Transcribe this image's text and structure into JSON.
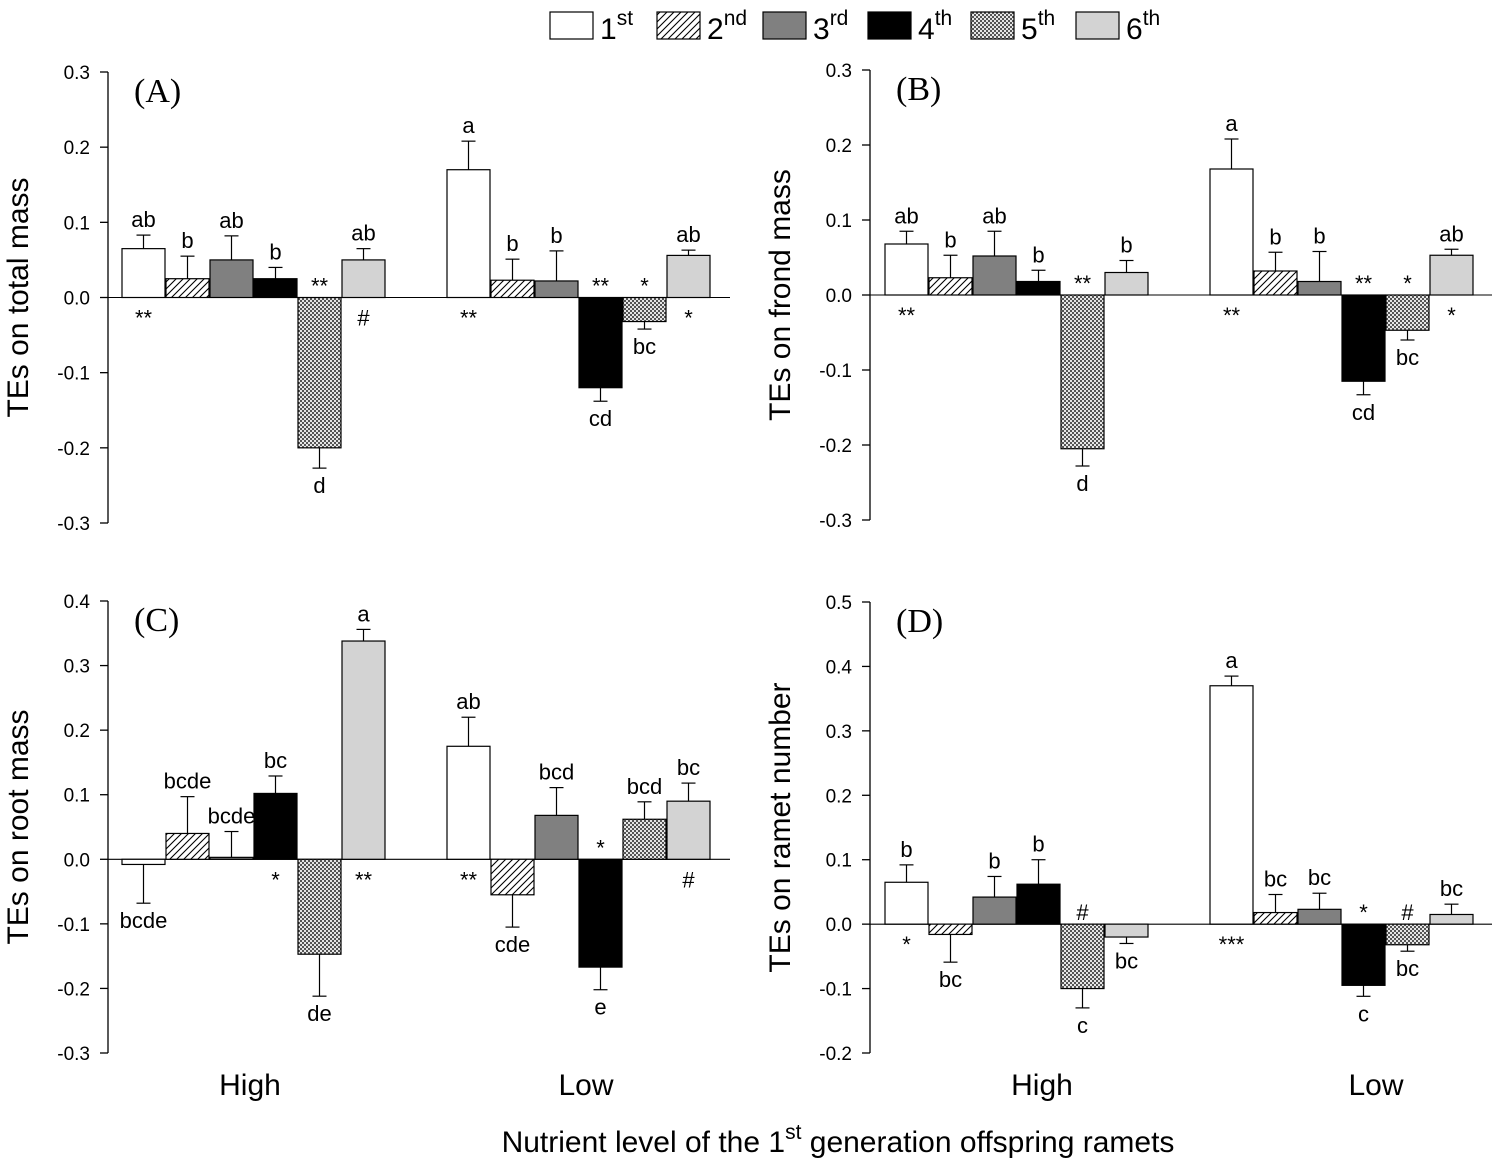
{
  "legend": [
    {
      "base": "1",
      "sup": "st",
      "fill": "white"
    },
    {
      "base": "2",
      "sup": "nd",
      "fill": "hatch"
    },
    {
      "base": "3",
      "sup": "rd",
      "fill": "#808080"
    },
    {
      "base": "4",
      "sup": "th",
      "fill": "#000000"
    },
    {
      "base": "5",
      "sup": "th",
      "fill": "checker"
    },
    {
      "base": "6",
      "sup": "th",
      "fill": "#d3d3d3"
    }
  ],
  "x_title": {
    "before": "Nutrient level of the 1",
    "sup": "st",
    "after": " generation offspring ramets"
  },
  "chart_data": [
    {
      "type": "bar",
      "panel": "(A)",
      "ylabel": "TEs on total mass",
      "ylim": [
        -0.3,
        0.3
      ],
      "yticks": [
        "0.3",
        "0.2",
        "0.1",
        "0.0",
        "-0.1",
        "-0.2",
        "-0.3"
      ],
      "categories": [
        "High",
        "Low"
      ],
      "series": [
        {
          "name": "1st",
          "values": [
            0.065,
            0.17
          ],
          "errors": [
            0.018,
            0.038
          ],
          "letters": [
            "ab",
            "a"
          ],
          "sig": [
            "**",
            "**"
          ]
        },
        {
          "name": "2nd",
          "values": [
            0.025,
            0.023
          ],
          "errors": [
            0.03,
            0.028
          ],
          "letters": [
            "b",
            "b"
          ],
          "sig": [
            "",
            ""
          ]
        },
        {
          "name": "3rd",
          "values": [
            0.05,
            0.022
          ],
          "errors": [
            0.032,
            0.04
          ],
          "letters": [
            "ab",
            "b"
          ],
          "sig": [
            "",
            ""
          ]
        },
        {
          "name": "4th",
          "values": [
            0.025,
            -0.12
          ],
          "errors": [
            0.015,
            0.018
          ],
          "letters": [
            "b",
            "cd"
          ],
          "sig": [
            "",
            "**"
          ]
        },
        {
          "name": "5th",
          "values": [
            -0.2,
            -0.032
          ],
          "errors": [
            0.027,
            0.01
          ],
          "letters": [
            "d",
            "bc"
          ],
          "sig": [
            "**",
            "*"
          ]
        },
        {
          "name": "6th",
          "values": [
            0.05,
            0.056
          ],
          "errors": [
            0.015,
            0.007
          ],
          "letters": [
            "ab",
            "ab"
          ],
          "sig": [
            "#",
            "*"
          ]
        }
      ]
    },
    {
      "type": "bar",
      "panel": "(B)",
      "ylabel": "TEs on frond mass",
      "ylim": [
        -0.3,
        0.3
      ],
      "yticks": [
        "0.3",
        "0.2",
        "0.1",
        "0.0",
        "-0.1",
        "-0.2",
        "-0.3"
      ],
      "categories": [
        "High",
        "Low"
      ],
      "series": [
        {
          "name": "1st",
          "values": [
            0.068,
            0.168
          ],
          "errors": [
            0.017,
            0.04
          ],
          "letters": [
            "ab",
            "a"
          ],
          "sig": [
            "**",
            "**"
          ]
        },
        {
          "name": "2nd",
          "values": [
            0.023,
            0.032
          ],
          "errors": [
            0.03,
            0.025
          ],
          "letters": [
            "b",
            "b"
          ],
          "sig": [
            "",
            ""
          ]
        },
        {
          "name": "3rd",
          "values": [
            0.052,
            0.018
          ],
          "errors": [
            0.033,
            0.04
          ],
          "letters": [
            "ab",
            "b"
          ],
          "sig": [
            "",
            ""
          ]
        },
        {
          "name": "4th",
          "values": [
            0.018,
            -0.115
          ],
          "errors": [
            0.015,
            0.018
          ],
          "letters": [
            "b",
            "cd"
          ],
          "sig": [
            "",
            "**"
          ]
        },
        {
          "name": "5th",
          "values": [
            -0.205,
            -0.047
          ],
          "errors": [
            0.023,
            0.013
          ],
          "letters": [
            "d",
            "bc"
          ],
          "sig": [
            "**",
            "*"
          ]
        },
        {
          "name": "6th",
          "values": [
            0.03,
            0.053
          ],
          "errors": [
            0.016,
            0.008
          ],
          "letters": [
            "b",
            "ab"
          ],
          "sig": [
            "",
            "*"
          ]
        }
      ]
    },
    {
      "type": "bar",
      "panel": "(C)",
      "ylabel": "TEs on root mass",
      "ylim": [
        -0.3,
        0.4
      ],
      "yticks": [
        "0.4",
        "0.3",
        "0.2",
        "0.1",
        "0.0",
        "-0.1",
        "-0.2",
        "-0.3"
      ],
      "categories": [
        "High",
        "Low"
      ],
      "series": [
        {
          "name": "1st",
          "values": [
            -0.008,
            0.175
          ],
          "errors": [
            0.06,
            0.045
          ],
          "letters": [
            "bcde",
            "ab"
          ],
          "sig": [
            "",
            "**"
          ]
        },
        {
          "name": "2nd",
          "values": [
            0.04,
            -0.055
          ],
          "errors": [
            0.057,
            0.05
          ],
          "letters": [
            "bcde",
            "cde"
          ],
          "sig": [
            "",
            ""
          ]
        },
        {
          "name": "3rd",
          "values": [
            0.003,
            0.068
          ],
          "errors": [
            0.04,
            0.043
          ],
          "letters": [
            "bcde",
            "bcd"
          ],
          "sig": [
            "",
            ""
          ]
        },
        {
          "name": "4th",
          "values": [
            0.102,
            -0.167
          ],
          "errors": [
            0.027,
            0.035
          ],
          "letters": [
            "bc",
            "e"
          ],
          "sig": [
            "*",
            "*"
          ]
        },
        {
          "name": "5th",
          "values": [
            -0.147,
            0.062
          ],
          "errors": [
            0.065,
            0.027
          ],
          "letters": [
            "de",
            "bcd"
          ],
          "sig": [
            "",
            ""
          ]
        },
        {
          "name": "6th",
          "values": [
            0.338,
            0.09
          ],
          "errors": [
            0.018,
            0.028
          ],
          "letters": [
            "a",
            "bc"
          ],
          "sig": [
            "**",
            "#"
          ]
        }
      ]
    },
    {
      "type": "bar",
      "panel": "(D)",
      "ylabel": "TEs on ramet number",
      "ylim": [
        -0.2,
        0.5
      ],
      "yticks": [
        "0.5",
        "0.4",
        "0.3",
        "0.2",
        "0.1",
        "0.0",
        "-0.1",
        "-0.2"
      ],
      "categories": [
        "High",
        "Low"
      ],
      "series": [
        {
          "name": "1st",
          "values": [
            0.065,
            0.37
          ],
          "errors": [
            0.027,
            0.015
          ],
          "letters": [
            "b",
            "a"
          ],
          "sig": [
            "*",
            "***"
          ]
        },
        {
          "name": "2nd",
          "values": [
            -0.016,
            0.018
          ],
          "errors": [
            0.043,
            0.028
          ],
          "letters": [
            "bc",
            "bc"
          ],
          "sig": [
            "",
            ""
          ]
        },
        {
          "name": "3rd",
          "values": [
            0.042,
            0.023
          ],
          "errors": [
            0.032,
            0.025
          ],
          "letters": [
            "b",
            "bc"
          ],
          "sig": [
            "",
            ""
          ]
        },
        {
          "name": "4th",
          "values": [
            0.062,
            -0.095
          ],
          "errors": [
            0.038,
            0.017
          ],
          "letters": [
            "b",
            "c"
          ],
          "sig": [
            "",
            "*"
          ]
        },
        {
          "name": "5th",
          "values": [
            -0.1,
            -0.032
          ],
          "errors": [
            0.03,
            0.01
          ],
          "letters": [
            "c",
            "bc"
          ],
          "sig": [
            "#",
            "#"
          ]
        },
        {
          "name": "6th",
          "values": [
            -0.02,
            0.015
          ],
          "errors": [
            0.01,
            0.016
          ],
          "letters": [
            "bc",
            "bc"
          ],
          "sig": [
            "",
            ""
          ]
        }
      ]
    }
  ]
}
